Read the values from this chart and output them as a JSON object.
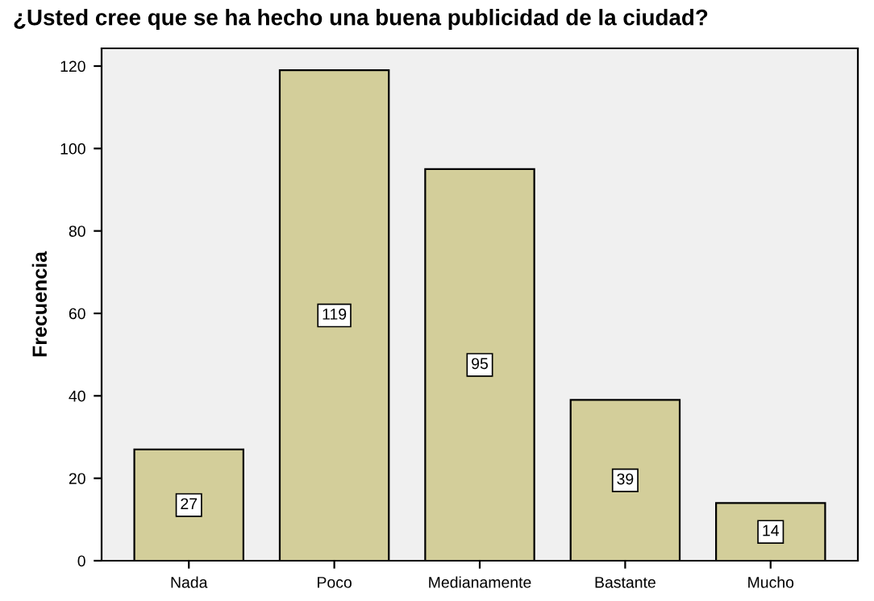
{
  "chart_data": {
    "type": "bar",
    "title": "¿Usted cree que se ha hecho una buena publicidad de la ciudad?",
    "ylabel": "Frecuencia",
    "categories": [
      "Nada",
      "Poco",
      "Medianamente",
      "Bastante",
      "Mucho"
    ],
    "values": [
      27,
      119,
      95,
      39,
      14
    ],
    "color": "#d3ce9a",
    "ylim": [
      0,
      124.3
    ],
    "yticks": [
      0,
      20,
      40,
      60,
      80,
      100,
      120
    ],
    "grid": false,
    "data_labels": true
  }
}
